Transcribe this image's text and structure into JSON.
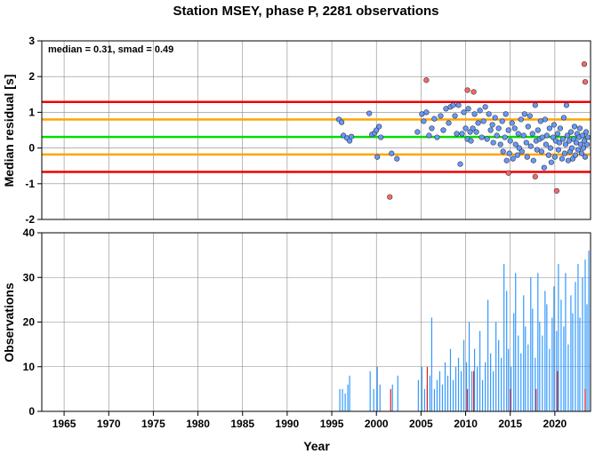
{
  "chart_data": [
    {
      "type": "scatter",
      "title": "Station MSEY, phase P, 2281 observations",
      "ylabel": "Median residual [s]",
      "xlim": [
        1962.5,
        2024.0
      ],
      "ylim": [
        -2,
        3
      ],
      "yticks": [
        -2,
        -1,
        0,
        1,
        2,
        3
      ],
      "grid": true,
      "annotation": "median = 0.31, smad = 0.49",
      "reference_lines": [
        {
          "y": 0.31,
          "color": "#00dd00",
          "role": "median"
        },
        {
          "y": 0.8,
          "color": "#ffa500",
          "role": "median + 1 smad"
        },
        {
          "y": -0.18,
          "color": "#ffa500",
          "role": "median - 1 smad"
        },
        {
          "y": 1.29,
          "color": "#ee0000",
          "role": "median + 2 smad"
        },
        {
          "y": -0.67,
          "color": "#ee0000",
          "role": "median - 2 smad"
        }
      ],
      "series": [
        {
          "color": "#6699ff",
          "points": [
            [
              1995.8,
              0.8
            ],
            [
              1996.1,
              0.72
            ],
            [
              1996.3,
              0.35
            ],
            [
              1996.7,
              0.28
            ],
            [
              1997.0,
              0.2
            ],
            [
              1997.2,
              0.32
            ],
            [
              1999.2,
              0.97
            ],
            [
              1999.5,
              0.38
            ],
            [
              1999.8,
              0.42
            ],
            [
              2000.0,
              0.5
            ],
            [
              2000.1,
              -0.25
            ],
            [
              2000.3,
              0.6
            ],
            [
              2000.5,
              0.3
            ],
            [
              2001.7,
              -0.15
            ],
            [
              2002.3,
              -0.3
            ],
            [
              2004.6,
              0.45
            ],
            [
              2005.1,
              0.95
            ],
            [
              2005.3,
              0.75
            ],
            [
              2005.6,
              1.0
            ],
            [
              2005.9,
              0.35
            ],
            [
              2006.2,
              0.55
            ],
            [
              2006.5,
              0.82
            ],
            [
              2006.8,
              0.3
            ],
            [
              2007.2,
              0.9
            ],
            [
              2007.5,
              0.5
            ],
            [
              2007.8,
              1.1
            ],
            [
              2008.1,
              0.7
            ],
            [
              2008.3,
              1.15
            ],
            [
              2008.6,
              1.2
            ],
            [
              2008.8,
              0.9
            ],
            [
              2009.0,
              0.4
            ],
            [
              2009.2,
              1.2
            ],
            [
              2009.4,
              -0.45
            ],
            [
              2009.6,
              0.4
            ],
            [
              2009.8,
              1.0
            ],
            [
              2010.0,
              0.55
            ],
            [
              2010.2,
              0.25
            ],
            [
              2010.3,
              1.1
            ],
            [
              2010.5,
              0.45
            ],
            [
              2010.6,
              0.2
            ],
            [
              2010.8,
              0.55
            ],
            [
              2011.0,
              0.95
            ],
            [
              2011.2,
              0.45
            ],
            [
              2011.4,
              0.7
            ],
            [
              2011.6,
              1.05
            ],
            [
              2011.8,
              0.3
            ],
            [
              2012.0,
              0.75
            ],
            [
              2012.2,
              1.15
            ],
            [
              2012.4,
              0.25
            ],
            [
              2012.6,
              0.95
            ],
            [
              2012.8,
              0.5
            ],
            [
              2013.0,
              0.65
            ],
            [
              2013.1,
              0.15
            ],
            [
              2013.3,
              0.85
            ],
            [
              2013.5,
              0.35
            ],
            [
              2013.7,
              0.55
            ],
            [
              2013.9,
              0.1
            ],
            [
              2014.1,
              0.75
            ],
            [
              2014.2,
              -0.1
            ],
            [
              2014.4,
              0.3
            ],
            [
              2014.5,
              0.95
            ],
            [
              2014.6,
              -0.35
            ],
            [
              2014.8,
              0.5
            ],
            [
              2014.9,
              -0.15
            ],
            [
              2015.0,
              0.2
            ],
            [
              2015.2,
              0.7
            ],
            [
              2015.3,
              -0.3
            ],
            [
              2015.5,
              0.55
            ],
            [
              2015.6,
              0.1
            ],
            [
              2015.8,
              -0.2
            ],
            [
              2015.9,
              0.4
            ],
            [
              2016.0,
              0.0
            ],
            [
              2016.2,
              0.8
            ],
            [
              2016.3,
              -0.1
            ],
            [
              2016.5,
              0.35
            ],
            [
              2016.6,
              0.95
            ],
            [
              2016.8,
              0.15
            ],
            [
              2016.9,
              -0.25
            ],
            [
              2017.0,
              0.6
            ],
            [
              2017.2,
              0.9
            ],
            [
              2017.3,
              0.05
            ],
            [
              2017.5,
              0.4
            ],
            [
              2017.6,
              -0.35
            ],
            [
              2017.8,
              1.2
            ],
            [
              2017.9,
              0.2
            ],
            [
              2018.0,
              -0.05
            ],
            [
              2018.1,
              0.5
            ],
            [
              2018.3,
              0.25
            ],
            [
              2018.4,
              0.75
            ],
            [
              2018.5,
              -0.1
            ],
            [
              2018.6,
              0.3
            ],
            [
              2018.8,
              -0.55
            ],
            [
              2018.9,
              0.8
            ],
            [
              2019.0,
              0.1
            ],
            [
              2019.1,
              0.35
            ],
            [
              2019.3,
              -0.2
            ],
            [
              2019.4,
              0.55
            ],
            [
              2019.5,
              0.0
            ],
            [
              2019.6,
              -0.4
            ],
            [
              2019.8,
              0.3
            ],
            [
              2019.9,
              0.65
            ],
            [
              2020.0,
              -0.25
            ],
            [
              2020.1,
              0.2
            ],
            [
              2020.3,
              0.4
            ],
            [
              2020.4,
              -0.05
            ],
            [
              2020.5,
              0.15
            ],
            [
              2020.6,
              0.55
            ],
            [
              2020.8,
              -0.3
            ],
            [
              2020.9,
              0.25
            ],
            [
              2021.0,
              0.85
            ],
            [
              2021.1,
              -0.15
            ],
            [
              2021.2,
              0.1
            ],
            [
              2021.3,
              1.2
            ],
            [
              2021.4,
              0.35
            ],
            [
              2021.5,
              -0.35
            ],
            [
              2021.6,
              0.2
            ],
            [
              2021.7,
              -0.1
            ],
            [
              2021.8,
              0.45
            ],
            [
              2021.9,
              0.0
            ],
            [
              2022.0,
              -0.3
            ],
            [
              2022.1,
              0.25
            ],
            [
              2022.2,
              0.6
            ],
            [
              2022.3,
              -0.2
            ],
            [
              2022.4,
              0.15
            ],
            [
              2022.5,
              0.4
            ],
            [
              2022.6,
              -0.05
            ],
            [
              2022.7,
              0.3
            ],
            [
              2022.8,
              0.55
            ],
            [
              2022.9,
              0.1
            ],
            [
              2023.0,
              -0.15
            ],
            [
              2023.1,
              0.35
            ],
            [
              2023.2,
              0.0
            ],
            [
              2023.3,
              0.2
            ],
            [
              2023.4,
              -0.25
            ],
            [
              2023.5,
              0.45
            ],
            [
              2023.6,
              0.1
            ],
            [
              2023.7,
              0.3
            ]
          ]
        },
        {
          "color": "#ff6666",
          "points": [
            [
              2001.5,
              -1.37
            ],
            [
              2005.6,
              1.9
            ],
            [
              2010.2,
              1.62
            ],
            [
              2010.9,
              1.57
            ],
            [
              2014.8,
              -0.7
            ],
            [
              2017.8,
              -0.8
            ],
            [
              2020.2,
              -1.2
            ],
            [
              2023.3,
              2.35
            ],
            [
              2023.4,
              1.85
            ]
          ]
        }
      ]
    },
    {
      "type": "bar",
      "ylabel": "Observations",
      "xlabel": "Year",
      "xlim": [
        1962.5,
        2024.0
      ],
      "xticks": [
        1965,
        1970,
        1975,
        1980,
        1985,
        1990,
        1995,
        2000,
        2005,
        2010,
        2015,
        2020
      ],
      "ylim": [
        0,
        40
      ],
      "yticks": [
        0,
        10,
        20,
        30,
        40
      ],
      "grid": true,
      "series": [
        {
          "color": "#3399ff",
          "x": [
            1995.9,
            1996.2,
            1996.5,
            1996.8,
            1997.0,
            1999.3,
            1999.7,
            2000.1,
            2000.4,
            2001.8,
            2002.4,
            2004.7,
            2005.1,
            2005.4,
            2005.7,
            2006.0,
            2006.2,
            2006.5,
            2006.8,
            2007.1,
            2007.4,
            2007.7,
            2008.0,
            2008.3,
            2008.6,
            2008.9,
            2009.2,
            2009.5,
            2009.8,
            2010.1,
            2010.4,
            2010.7,
            2011.0,
            2011.3,
            2011.6,
            2011.9,
            2012.2,
            2012.5,
            2012.8,
            2013.1,
            2013.4,
            2013.7,
            2014.0,
            2014.3,
            2014.6,
            2014.8,
            2015.1,
            2015.4,
            2015.6,
            2015.9,
            2016.2,
            2016.5,
            2016.7,
            2017.0,
            2017.3,
            2017.5,
            2017.8,
            2018.1,
            2018.3,
            2018.6,
            2018.9,
            2019.1,
            2019.4,
            2019.7,
            2019.9,
            2020.2,
            2020.4,
            2020.7,
            2021.0,
            2021.2,
            2021.5,
            2021.8,
            2022.0,
            2022.3,
            2022.6,
            2022.8,
            2023.1,
            2023.4,
            2023.6,
            2023.8
          ],
          "values": [
            5,
            5,
            4,
            6,
            8,
            9,
            5,
            10,
            6,
            6,
            8,
            7,
            10,
            5,
            6,
            8,
            21,
            5,
            7,
            9,
            6,
            11,
            8,
            14,
            7,
            10,
            12,
            9,
            16,
            11,
            20,
            9,
            14,
            10,
            18,
            7,
            11,
            25,
            13,
            9,
            20,
            16,
            12,
            33,
            27,
            14,
            10,
            22,
            31,
            17,
            13,
            26,
            19,
            15,
            30,
            23,
            12,
            31,
            20,
            17,
            27,
            24,
            14,
            21,
            28,
            18,
            33,
            25,
            19,
            31,
            15,
            26,
            22,
            29,
            33,
            21,
            30,
            34,
            24,
            36
          ]
        },
        {
          "color": "#dd2222",
          "x": [
            2001.6,
            2005.7,
            2010.2,
            2010.9,
            2015.0,
            2017.9,
            2020.3,
            2023.4
          ],
          "values": [
            5,
            10,
            5,
            9,
            5,
            5,
            9,
            5
          ]
        }
      ]
    }
  ]
}
